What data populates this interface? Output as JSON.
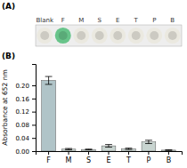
{
  "chart_data": [
    {
      "type": "image",
      "title": "(A)",
      "categories": [
        "Blank",
        "F",
        "M",
        "S",
        "E",
        "T",
        "P",
        "B"
      ],
      "colors": [
        "#cccac2",
        "#5aaa78",
        "#cccac2",
        "#cccac2",
        "#cccac2",
        "#cccac2",
        "#cccac2",
        "#cccac2"
      ]
    },
    {
      "type": "bar",
      "title": "(B)",
      "categories": [
        "F",
        "M",
        "S",
        "E",
        "T",
        "P",
        "B"
      ],
      "values": [
        0.215,
        0.006,
        0.005,
        0.016,
        0.007,
        0.028,
        0.003
      ],
      "errors": [
        0.012,
        0.002,
        0.001,
        0.004,
        0.002,
        0.005,
        0.001
      ],
      "ylabel": "Absorbance at 652 nm",
      "ylim": [
        0,
        0.265
      ],
      "yticks": [
        {
          "value": 0.0,
          "label": "0.00"
        },
        {
          "value": 0.04,
          "label": "0.04"
        },
        {
          "value": 0.08,
          "label": "0.08"
        },
        {
          "value": 0.12,
          "label": "0.12"
        },
        {
          "value": 0.16,
          "label": "0.16"
        },
        {
          "value": 0.2,
          "label": "0.20"
        }
      ],
      "colors": [
        "#b0c4c8",
        "#c8d4d0",
        "#c8d4d0",
        "#c8d4d0",
        "#c8d4d0",
        "#c8d4d0",
        "#c8d4d0"
      ],
      "grid": false
    }
  ]
}
